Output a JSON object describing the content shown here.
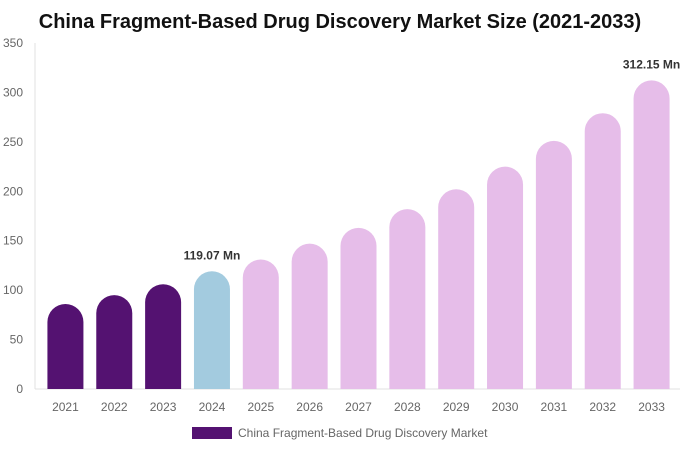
{
  "chart_data": {
    "type": "bar",
    "title": "China Fragment-Based Drug Discovery Market Size (2021-2033)",
    "categories": [
      "2021",
      "2022",
      "2023",
      "2024",
      "2025",
      "2026",
      "2027",
      "2028",
      "2029",
      "2030",
      "2031",
      "2032",
      "2033"
    ],
    "series": [
      {
        "name": "China Fragment-Based Drug Discovery Market",
        "values": [
          86,
          95,
          106,
          119.07,
          131,
          147,
          163,
          182,
          202,
          225,
          251,
          279,
          312.15
        ]
      }
    ],
    "bar_colors": [
      "#541271",
      "#541271",
      "#541271",
      "#a3cbdf",
      "#e6bde9",
      "#e6bde9",
      "#e6bde9",
      "#e6bde9",
      "#e6bde9",
      "#e6bde9",
      "#e6bde9",
      "#e6bde9",
      "#e6bde9"
    ],
    "data_labels": [
      {
        "index": 3,
        "text": "119.07 Mn"
      },
      {
        "index": 12,
        "text": "312.15 Mn"
      }
    ],
    "ylim": [
      0,
      350
    ],
    "yticks": [
      "0",
      "50",
      "100",
      "150",
      "200",
      "250",
      "300",
      "350"
    ],
    "grid": false,
    "legend": {
      "position": "bottom",
      "label": "China Fragment-Based Drug Discovery Market",
      "color": "#541271"
    },
    "xlabel": "",
    "ylabel": ""
  }
}
